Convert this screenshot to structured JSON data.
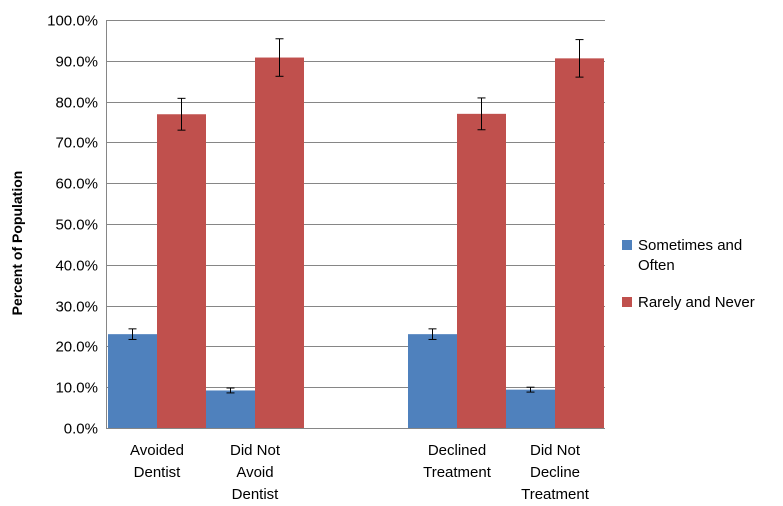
{
  "chart_data": {
    "type": "bar",
    "title": "",
    "xlabel": "",
    "ylabel": "Percent of Population",
    "ylim": [
      0,
      100
    ],
    "yticks": [
      "0.0%",
      "10.0%",
      "20.0%",
      "30.0%",
      "40.0%",
      "50.0%",
      "60.0%",
      "70.0%",
      "80.0%",
      "90.0%",
      "100.0%"
    ],
    "grid": true,
    "legend_position": "right",
    "categories": [
      [
        "Avoided",
        "Dentist"
      ],
      [
        "Did Not",
        "Avoid",
        "Dentist"
      ],
      [
        "Declined",
        "Treatment"
      ],
      [
        "Did Not",
        "Decline",
        "Treatment"
      ]
    ],
    "series": [
      {
        "name": "Sometimes and Often",
        "legend_lines": [
          "Sometimes and",
          "Often"
        ],
        "color": "#4f81bd",
        "values": [
          23.0,
          9.2,
          23.0,
          9.4
        ],
        "error": [
          1.3,
          0.6,
          1.3,
          0.6
        ]
      },
      {
        "name": "Rarely and Never",
        "legend_lines": [
          "Rarely and Never"
        ],
        "color": "#c0504d",
        "values": [
          76.9,
          90.8,
          77.0,
          90.6
        ],
        "error": [
          3.9,
          4.6,
          3.9,
          4.6
        ]
      }
    ]
  }
}
